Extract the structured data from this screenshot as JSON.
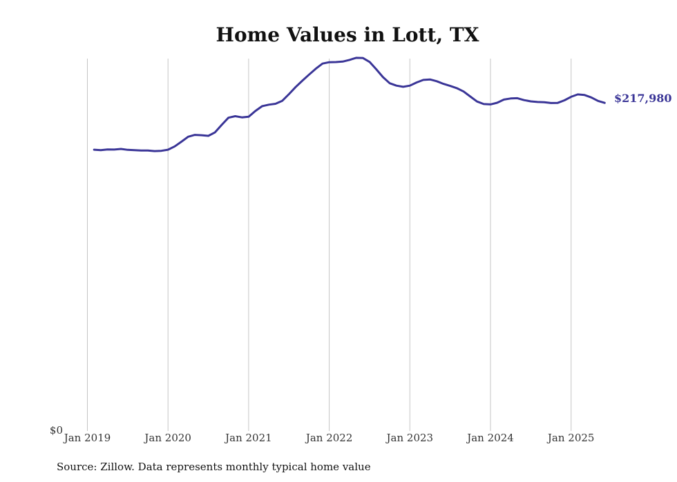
{
  "chart_data": {
    "type": "line",
    "title": "Home Values in Lott, TX",
    "xlabel": "",
    "ylabel": "",
    "ylim": [
      0,
      245000
    ],
    "y_tick_labels": [
      "$0"
    ],
    "x_tick_labels": [
      "Jan 2019",
      "Jan 2020",
      "Jan 2021",
      "Jan 2022",
      "Jan 2023",
      "Jan 2024",
      "Jan 2025"
    ],
    "grid": "vertical lines at each January",
    "line_color": "#3a3597",
    "end_label": "$217,980",
    "series": [
      {
        "x": [
          "2019-02",
          "2019-03",
          "2019-04",
          "2019-05",
          "2019-06",
          "2019-07",
          "2019-08",
          "2019-09",
          "2019-10",
          "2019-11",
          "2019-12",
          "2020-01",
          "2020-02",
          "2020-03",
          "2020-04",
          "2020-05",
          "2020-06",
          "2020-07",
          "2020-08",
          "2020-09",
          "2020-10",
          "2020-11",
          "2020-12",
          "2021-01",
          "2021-02",
          "2021-03",
          "2021-04",
          "2021-05",
          "2021-06",
          "2021-07",
          "2021-08",
          "2021-09",
          "2021-10",
          "2021-11",
          "2021-12",
          "2022-01",
          "2022-02",
          "2022-03",
          "2022-04",
          "2022-05",
          "2022-06",
          "2022-07",
          "2022-08",
          "2022-09",
          "2022-10",
          "2022-11",
          "2022-12",
          "2023-01",
          "2023-02",
          "2023-03",
          "2023-04",
          "2023-05",
          "2023-06",
          "2023-07",
          "2023-08",
          "2023-09",
          "2023-10",
          "2023-11",
          "2023-12",
          "2024-01",
          "2024-02",
          "2024-03",
          "2024-04",
          "2024-05",
          "2024-06",
          "2024-07",
          "2024-08",
          "2024-09",
          "2024-10",
          "2024-11",
          "2024-12",
          "2025-01",
          "2025-02",
          "2025-03",
          "2025-04",
          "2025-05",
          "2025-06"
        ],
        "y": [
          187000,
          186700,
          187200,
          187100,
          187500,
          186900,
          186700,
          186500,
          186500,
          186100,
          186300,
          187000,
          189200,
          192300,
          195600,
          196800,
          196600,
          196200,
          198500,
          203500,
          208200,
          209200,
          208400,
          208800,
          212600,
          215800,
          216800,
          217400,
          219300,
          223800,
          228500,
          232700,
          236700,
          240600,
          244000,
          244900,
          245000,
          245300,
          246400,
          247800,
          247700,
          245100,
          240200,
          235000,
          231000,
          229400,
          228600,
          229400,
          231500,
          233200,
          233500,
          232300,
          230600,
          229200,
          227700,
          225500,
          222200,
          218900,
          217200,
          217000,
          218100,
          220200,
          220900,
          221100,
          219800,
          219000,
          218600,
          218400,
          217900,
          218000,
          219700,
          222000,
          223600,
          223200,
          221600,
          219300,
          217980
        ]
      }
    ]
  },
  "source_text": "Source: Zillow. Data represents monthly typical home value"
}
